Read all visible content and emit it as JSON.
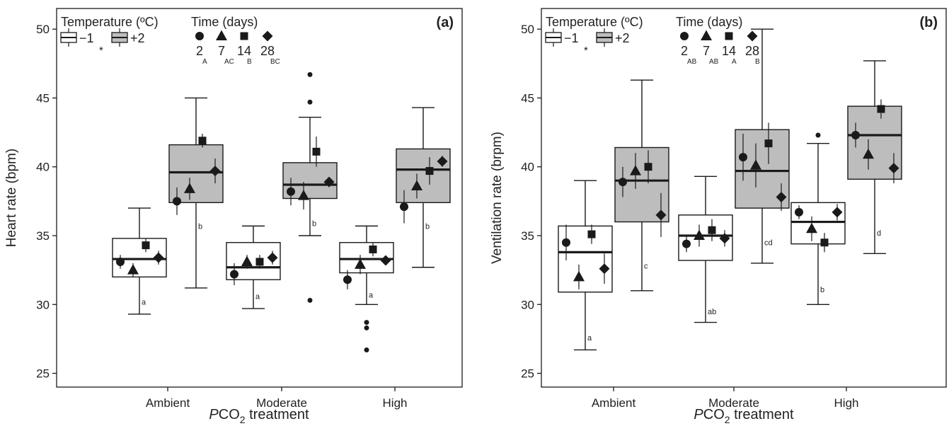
{
  "colors": {
    "box_low": "#ffffff",
    "box_high": "#bdbdbd",
    "ink": "#1a1a1a"
  },
  "chart_data": [
    {
      "type": "box",
      "panel": "(a)",
      "ylabel": "Heart rate (bpm)",
      "xlabel_italic": "P",
      "xlabel_rest": "CO",
      "xlabel_sub": "2",
      "xlabel_tail": " treatment",
      "ylim": [
        24,
        51.5
      ],
      "yticks": [
        25,
        30,
        35,
        40,
        45,
        50
      ],
      "categories": [
        "Ambient",
        "Moderate",
        "High"
      ],
      "legend": {
        "temp_title": "Temperature (ºC)",
        "temp_low": "−1",
        "temp_high": "+2",
        "temp_star": "*",
        "time_title": "Time (days)",
        "times": [
          {
            "label": "2",
            "sub": "A",
            "marker": "circle"
          },
          {
            "label": "7",
            "sub": "AC",
            "marker": "triangle"
          },
          {
            "label": "14",
            "sub": "B",
            "marker": "square"
          },
          {
            "label": "28",
            "sub": "BC",
            "marker": "diamond"
          }
        ]
      },
      "boxes": [
        {
          "category": "Ambient",
          "temp": "-1",
          "whisker_low": 29.3,
          "q1": 32.0,
          "median": 33.3,
          "q3": 34.8,
          "whisker_high": 37.0,
          "outliers": [],
          "letter": "a",
          "letter_y": 30.0,
          "points": [
            {
              "time": "2",
              "mean": 33.1,
              "err": 0.5
            },
            {
              "time": "7",
              "mean": 32.5,
              "err": 0.5
            },
            {
              "time": "14",
              "mean": 34.3,
              "err": 0.5
            },
            {
              "time": "28",
              "mean": 33.4,
              "err": 0.5
            }
          ]
        },
        {
          "category": "Ambient",
          "temp": "+2",
          "whisker_low": 31.2,
          "q1": 37.4,
          "median": 39.6,
          "q3": 41.6,
          "whisker_high": 45.0,
          "outliers": [],
          "letter": "b",
          "letter_y": 35.5,
          "points": [
            {
              "time": "2",
              "mean": 37.5,
              "err": 1.0
            },
            {
              "time": "7",
              "mean": 38.4,
              "err": 0.8
            },
            {
              "time": "14",
              "mean": 41.9,
              "err": 0.5
            },
            {
              "time": "28",
              "mean": 39.7,
              "err": 0.9
            }
          ]
        },
        {
          "category": "Moderate",
          "temp": "-1",
          "whisker_low": 29.7,
          "q1": 31.8,
          "median": 32.7,
          "q3": 34.5,
          "whisker_high": 35.7,
          "outliers": [],
          "letter": "a",
          "letter_y": 30.4,
          "points": [
            {
              "time": "2",
              "mean": 32.2,
              "err": 0.8
            },
            {
              "time": "7",
              "mean": 33.1,
              "err": 0.5
            },
            {
              "time": "14",
              "mean": 33.1,
              "err": 0.5
            },
            {
              "time": "28",
              "mean": 33.4,
              "err": 0.5
            }
          ]
        },
        {
          "category": "Moderate",
          "temp": "+2",
          "whisker_low": 35.0,
          "q1": 37.7,
          "median": 38.7,
          "q3": 40.3,
          "whisker_high": 43.6,
          "outliers": [
            30.3,
            44.7,
            46.7
          ],
          "letter": "b",
          "letter_y": 35.7,
          "points": [
            {
              "time": "2",
              "mean": 38.2,
              "err": 1.0
            },
            {
              "time": "7",
              "mean": 37.9,
              "err": 1.0
            },
            {
              "time": "14",
              "mean": 41.1,
              "err": 1.1
            },
            {
              "time": "28",
              "mean": 38.9,
              "err": 0.3
            }
          ]
        },
        {
          "category": "High",
          "temp": "-1",
          "whisker_low": 30.0,
          "q1": 32.3,
          "median": 33.3,
          "q3": 34.5,
          "whisker_high": 35.7,
          "outliers": [
            26.7,
            28.3,
            28.7
          ],
          "letter": "a",
          "letter_y": 30.5,
          "points": [
            {
              "time": "2",
              "mean": 31.8,
              "err": 0.7
            },
            {
              "time": "7",
              "mean": 32.9,
              "err": 0.7
            },
            {
              "time": "14",
              "mean": 34.0,
              "err": 0.5
            },
            {
              "time": "28",
              "mean": 33.2,
              "err": 0.3
            }
          ]
        },
        {
          "category": "High",
          "temp": "+2",
          "whisker_low": 32.7,
          "q1": 37.4,
          "median": 39.8,
          "q3": 41.3,
          "whisker_high": 44.3,
          "outliers": [],
          "letter": "b",
          "letter_y": 35.5,
          "points": [
            {
              "time": "2",
              "mean": 37.1,
              "err": 1.2
            },
            {
              "time": "7",
              "mean": 38.6,
              "err": 0.9
            },
            {
              "time": "14",
              "mean": 39.7,
              "err": 1.0
            },
            {
              "time": "28",
              "mean": 40.4,
              "err": 0.4
            }
          ]
        }
      ]
    },
    {
      "type": "box",
      "panel": "(b)",
      "ylabel": "Ventilation rate (brpm)",
      "xlabel_italic": "P",
      "xlabel_rest": "CO",
      "xlabel_sub": "2",
      "xlabel_tail": " treatment",
      "ylim": [
        24,
        51.5
      ],
      "yticks": [
        25,
        30,
        35,
        40,
        45,
        50
      ],
      "categories": [
        "Ambient",
        "Moderate",
        "High"
      ],
      "legend": {
        "temp_title": "Temperature (ºC)",
        "temp_low": "−1",
        "temp_high": "+2",
        "temp_star": "*",
        "time_title": "Time (days)",
        "times": [
          {
            "label": "2",
            "sub": "AB",
            "marker": "circle"
          },
          {
            "label": "7",
            "sub": "AB",
            "marker": "triangle"
          },
          {
            "label": "14",
            "sub": "A",
            "marker": "square"
          },
          {
            "label": "28",
            "sub": "B",
            "marker": "diamond"
          }
        ]
      },
      "boxes": [
        {
          "category": "Ambient",
          "temp": "-1",
          "whisker_low": 26.7,
          "q1": 30.9,
          "median": 33.8,
          "q3": 35.7,
          "whisker_high": 39.0,
          "outliers": [],
          "letter": "a",
          "letter_y": 27.4,
          "points": [
            {
              "time": "2",
              "mean": 34.5,
              "err": 1.3
            },
            {
              "time": "7",
              "mean": 32.0,
              "err": 0.9
            },
            {
              "time": "14",
              "mean": 35.1,
              "err": 0.7
            },
            {
              "time": "28",
              "mean": 32.6,
              "err": 1.1
            }
          ]
        },
        {
          "category": "Ambient",
          "temp": "+2",
          "whisker_low": 31.0,
          "q1": 36.0,
          "median": 39.0,
          "q3": 41.4,
          "whisker_high": 46.3,
          "outliers": [],
          "letter": "c",
          "letter_y": 32.6,
          "points": [
            {
              "time": "2",
              "mean": 38.9,
              "err": 1.1
            },
            {
              "time": "7",
              "mean": 39.7,
              "err": 1.3
            },
            {
              "time": "14",
              "mean": 40.0,
              "err": 1.2
            },
            {
              "time": "28",
              "mean": 36.5,
              "err": 1.6
            }
          ]
        },
        {
          "category": "Moderate",
          "temp": "-1",
          "whisker_low": 28.7,
          "q1": 33.2,
          "median": 35.0,
          "q3": 36.5,
          "whisker_high": 39.3,
          "outliers": [],
          "letter": "ab",
          "letter_y": 29.3,
          "points": [
            {
              "time": "2",
              "mean": 34.4,
              "err": 0.6
            },
            {
              "time": "7",
              "mean": 35.0,
              "err": 0.8
            },
            {
              "time": "14",
              "mean": 35.4,
              "err": 0.8
            },
            {
              "time": "28",
              "mean": 34.8,
              "err": 0.6
            }
          ]
        },
        {
          "category": "Moderate",
          "temp": "+2",
          "whisker_low": 33.0,
          "q1": 37.0,
          "median": 39.7,
          "q3": 42.7,
          "whisker_high": 50.0,
          "outliers": [],
          "letter": "cd",
          "letter_y": 34.3,
          "points": [
            {
              "time": "2",
              "mean": 40.7,
              "err": 1.7
            },
            {
              "time": "7",
              "mean": 40.1,
              "err": 1.6
            },
            {
              "time": "14",
              "mean": 41.7,
              "err": 1.5
            },
            {
              "time": "28",
              "mean": 37.8,
              "err": 1.0
            }
          ]
        },
        {
          "category": "High",
          "temp": "-1",
          "whisker_low": 30.0,
          "q1": 34.4,
          "median": 36.0,
          "q3": 37.4,
          "whisker_high": 41.7,
          "outliers": [
            42.3
          ],
          "letter": "b",
          "letter_y": 30.9,
          "points": [
            {
              "time": "2",
              "mean": 36.7,
              "err": 0.5
            },
            {
              "time": "7",
              "mean": 35.5,
              "err": 0.9
            },
            {
              "time": "14",
              "mean": 34.5,
              "err": 0.7
            },
            {
              "time": "28",
              "mean": 36.7,
              "err": 0.6
            }
          ]
        },
        {
          "category": "High",
          "temp": "+2",
          "whisker_low": 33.7,
          "q1": 39.1,
          "median": 42.3,
          "q3": 44.4,
          "whisker_high": 47.7,
          "outliers": [],
          "letter": "d",
          "letter_y": 35.0,
          "points": [
            {
              "time": "2",
              "mean": 42.3,
              "err": 0.9
            },
            {
              "time": "7",
              "mean": 40.9,
              "err": 1.1
            },
            {
              "time": "14",
              "mean": 44.2,
              "err": 0.7
            },
            {
              "time": "28",
              "mean": 39.9,
              "err": 1.1
            }
          ]
        }
      ]
    }
  ]
}
